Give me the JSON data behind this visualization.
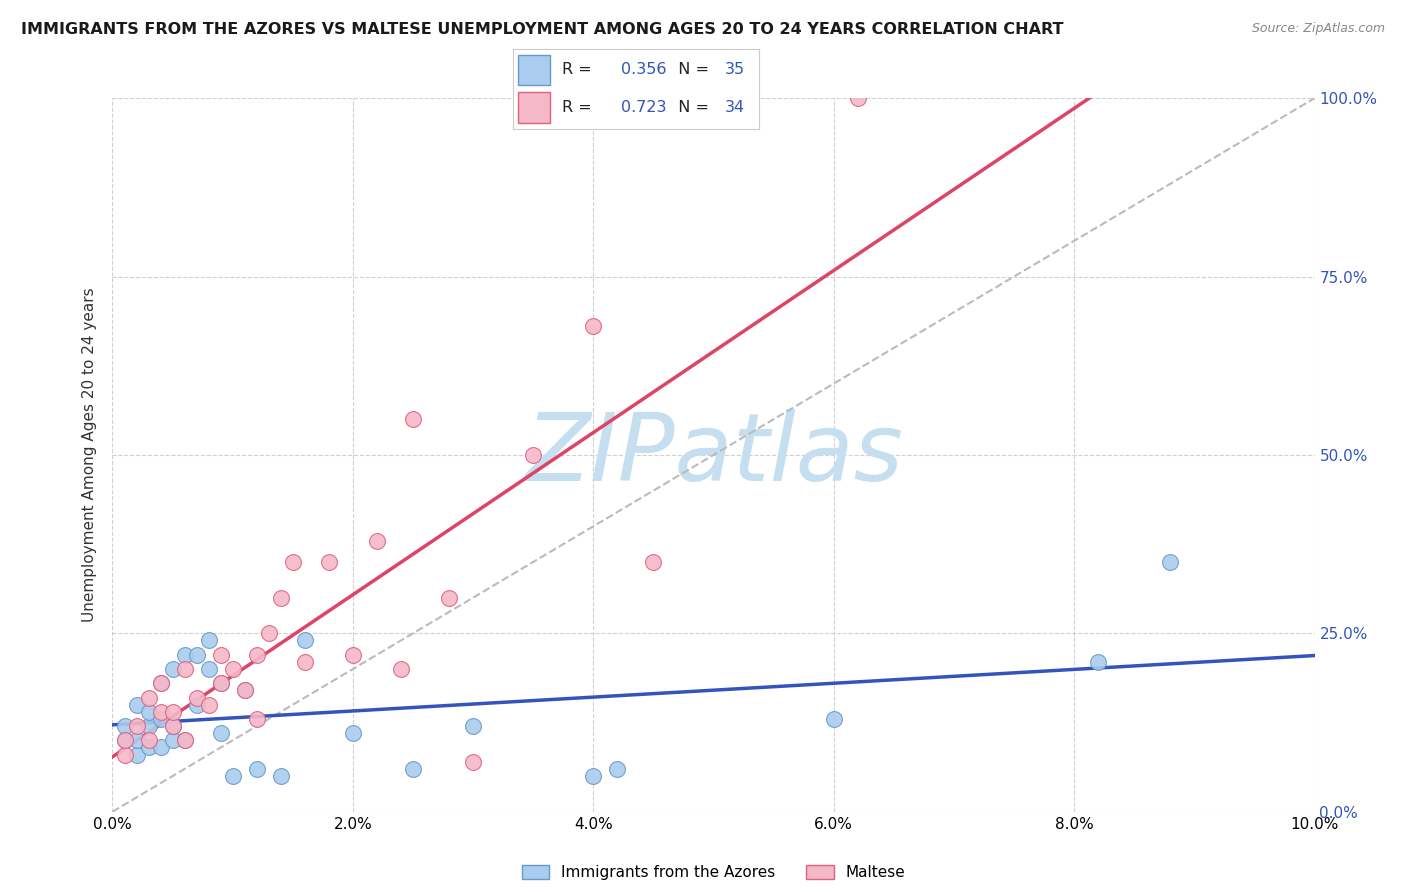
{
  "title": "IMMIGRANTS FROM THE AZORES VS MALTESE UNEMPLOYMENT AMONG AGES 20 TO 24 YEARS CORRELATION CHART",
  "source": "Source: ZipAtlas.com",
  "ylabel_left": "Unemployment Among Ages 20 to 24 years",
  "xlim": [
    0.0,
    0.1
  ],
  "ylim": [
    -0.02,
    1.05
  ],
  "ylim_plot": [
    0.0,
    1.0
  ],
  "xtick_labels": [
    "0.0%",
    "2.0%",
    "4.0%",
    "6.0%",
    "8.0%",
    "10.0%"
  ],
  "xtick_values": [
    0.0,
    0.02,
    0.04,
    0.06,
    0.08,
    0.1
  ],
  "ytick_right_labels": [
    "100.0%",
    "75.0%",
    "50.0%",
    "25.0%",
    "0.0%"
  ],
  "ytick_right_values": [
    1.0,
    0.75,
    0.5,
    0.25,
    0.0
  ],
  "grid_color": "#d0d0d0",
  "background_color": "#ffffff",
  "watermark_text": "ZIPatlas",
  "watermark_color": "#c5dff0",
  "series1_label": "Immigrants from the Azores",
  "series1_fill_color": "#aaccee",
  "series1_edge_color": "#6699cc",
  "series2_label": "Maltese",
  "series2_fill_color": "#f5b8c8",
  "series2_edge_color": "#e06080",
  "series1_R": "0.356",
  "series1_N": "35",
  "series2_R": "0.723",
  "series2_N": "34",
  "trend1_color": "#3355bb",
  "trend2_color": "#dd4466",
  "refline_color": "#bbbbbb",
  "legend_text_color": "#333333",
  "legend_value_color": "#3355bb",
  "series1_x": [
    0.001,
    0.001,
    0.002,
    0.002,
    0.002,
    0.003,
    0.003,
    0.003,
    0.004,
    0.004,
    0.004,
    0.005,
    0.005,
    0.005,
    0.006,
    0.006,
    0.007,
    0.007,
    0.008,
    0.008,
    0.009,
    0.009,
    0.01,
    0.011,
    0.012,
    0.014,
    0.016,
    0.02,
    0.025,
    0.03,
    0.04,
    0.042,
    0.06,
    0.082,
    0.088
  ],
  "series1_y": [
    0.1,
    0.12,
    0.08,
    0.1,
    0.15,
    0.09,
    0.12,
    0.14,
    0.09,
    0.13,
    0.18,
    0.1,
    0.12,
    0.2,
    0.1,
    0.22,
    0.15,
    0.22,
    0.2,
    0.24,
    0.11,
    0.18,
    0.05,
    0.17,
    0.06,
    0.05,
    0.24,
    0.11,
    0.06,
    0.12,
    0.05,
    0.06,
    0.13,
    0.21,
    0.35
  ],
  "series2_x": [
    0.001,
    0.001,
    0.002,
    0.003,
    0.003,
    0.004,
    0.004,
    0.005,
    0.005,
    0.006,
    0.006,
    0.007,
    0.008,
    0.009,
    0.009,
    0.01,
    0.011,
    0.012,
    0.012,
    0.013,
    0.014,
    0.015,
    0.016,
    0.018,
    0.02,
    0.022,
    0.024,
    0.025,
    0.028,
    0.03,
    0.035,
    0.04,
    0.045,
    0.062
  ],
  "series2_y": [
    0.08,
    0.1,
    0.12,
    0.1,
    0.16,
    0.14,
    0.18,
    0.12,
    0.14,
    0.1,
    0.2,
    0.16,
    0.15,
    0.18,
    0.22,
    0.2,
    0.17,
    0.13,
    0.22,
    0.25,
    0.3,
    0.35,
    0.21,
    0.35,
    0.22,
    0.38,
    0.2,
    0.55,
    0.3,
    0.07,
    0.5,
    0.68,
    0.35,
    1.0
  ],
  "title_fontsize": 11.5,
  "source_fontsize": 9,
  "tick_fontsize": 11,
  "ylabel_fontsize": 11
}
